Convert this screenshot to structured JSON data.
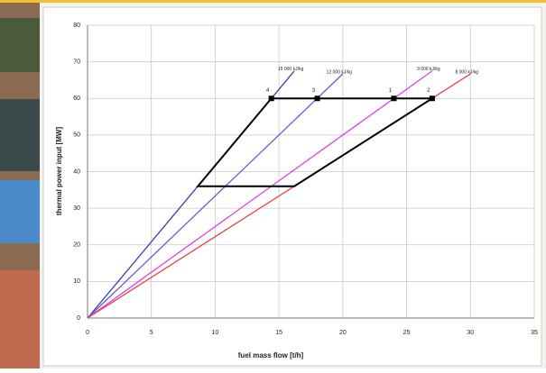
{
  "chart_data": {
    "type": "line",
    "x_label": "fuel mass flow [t/h]",
    "y_label": "thermal power input [MW]",
    "xlim": [
      0,
      35
    ],
    "ylim": [
      0,
      80
    ],
    "xticks": [
      0,
      5,
      10,
      15,
      20,
      25,
      30,
      35
    ],
    "yticks": [
      0,
      10,
      20,
      30,
      40,
      50,
      60,
      70,
      80
    ],
    "grid": true,
    "series": [
      {
        "name": "15 000 kJ/kg",
        "color": "#3b3bb0",
        "x": [
          0,
          16.2
        ],
        "values": [
          0,
          67.5
        ]
      },
      {
        "name": "12 000 kJ/kg",
        "color": "#6a5ad8",
        "x": [
          0,
          20
        ],
        "values": [
          0,
          66.7
        ]
      },
      {
        "name": "9 000 kJ/kg",
        "color": "#e040e0",
        "x": [
          0,
          27
        ],
        "values": [
          0,
          67.5
        ]
      },
      {
        "name": "8 000 kJ/kg",
        "color": "#e84040",
        "x": [
          0,
          30
        ],
        "values": [
          0,
          66.7
        ]
      }
    ],
    "outline": {
      "color": "#000000",
      "x": [
        14.4,
        27,
        16.2,
        8.64,
        14.4
      ],
      "values": [
        60,
        60,
        36,
        36,
        60
      ]
    },
    "points": [
      {
        "label": "4",
        "x": 14.4,
        "value": 60
      },
      {
        "label": "3",
        "x": 18,
        "value": 60
      },
      {
        "label": "1",
        "x": 24,
        "value": 60
      },
      {
        "label": "2",
        "x": 27,
        "value": 60
      }
    ]
  }
}
